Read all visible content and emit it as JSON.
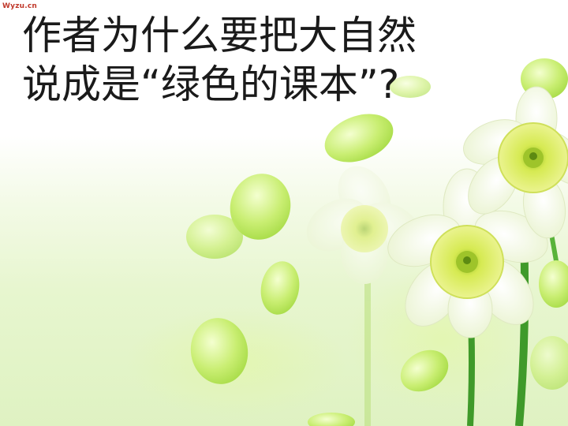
{
  "slide": {
    "watermark": "Wyzu.cn",
    "title_lines": [
      "作者为什么要把大自然",
      "说成是“绿色的课本”?"
    ]
  },
  "colors": {
    "petal_green": "#c4ec6e",
    "flower_center": "#d8e84a",
    "stem_green": "#3f9a2a",
    "watermark_red": "#c0392b"
  }
}
